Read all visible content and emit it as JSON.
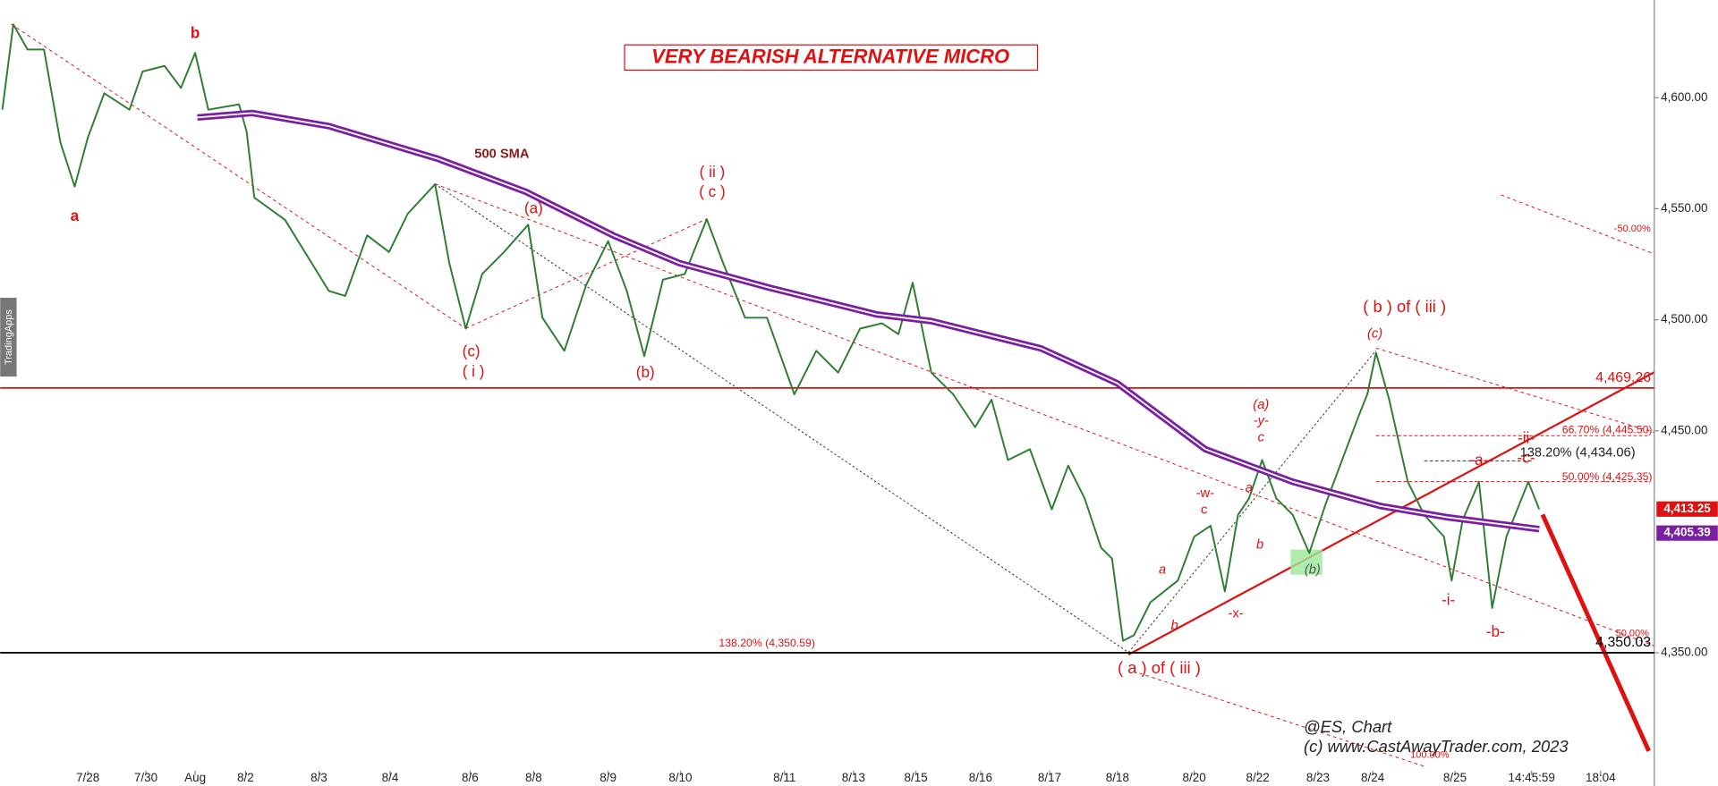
{
  "chart_data": {
    "type": "line",
    "title": "VERY BEARISH ALTERNATIVE MICRO",
    "side_label": "TradingApps",
    "xlim": [
      0,
      151
    ],
    "ylim": [
      4290,
      4644
    ],
    "xticks": [
      {
        "value": 8.0,
        "label": "7/28"
      },
      {
        "value": 13.3,
        "label": "7/30"
      },
      {
        "value": 17.8,
        "label": "Aug"
      },
      {
        "value": 22.4,
        "label": "8/2"
      },
      {
        "value": 29.1,
        "label": "8/3"
      },
      {
        "value": 35.6,
        "label": "8/4"
      },
      {
        "value": 42.9,
        "label": "8/6"
      },
      {
        "value": 48.7,
        "label": "8/8"
      },
      {
        "value": 55.5,
        "label": "8/9"
      },
      {
        "value": 62.1,
        "label": "8/10"
      },
      {
        "value": 71.6,
        "label": "8/11"
      },
      {
        "value": 77.9,
        "label": "8/13"
      },
      {
        "value": 83.6,
        "label": "8/15"
      },
      {
        "value": 89.5,
        "label": "8/16"
      },
      {
        "value": 95.8,
        "label": "8/17"
      },
      {
        "value": 102.0,
        "label": "8/18"
      },
      {
        "value": 109.0,
        "label": "8/20"
      },
      {
        "value": 114.8,
        "label": "8/22"
      },
      {
        "value": 120.3,
        "label": "8/23"
      },
      {
        "value": 125.3,
        "label": "8/24"
      },
      {
        "value": 132.8,
        "label": "8/25"
      },
      {
        "value": 139.8,
        "label": "14:45:59"
      },
      {
        "value": 146.1,
        "label": "18:04"
      }
    ],
    "yticks": [
      {
        "value": 4600,
        "label": "4,600.00"
      },
      {
        "value": 4550,
        "label": "4,550.00"
      },
      {
        "value": 4500,
        "label": "4,500.00"
      },
      {
        "value": 4450,
        "label": "4,450.00"
      },
      {
        "value": 4350,
        "label": "4,350.00"
      }
    ],
    "series": [
      {
        "name": "@ES",
        "color": "#2e7d32",
        "x": [
          0.2,
          1.2,
          2.5,
          4.0,
          5.5,
          6.8,
          8.0,
          9.5,
          11.8,
          13.0,
          15.0,
          16.5,
          17.8,
          19.0,
          21.8,
          22.5,
          23.2,
          26.0,
          30.0,
          31.5,
          33.5,
          35.5,
          37.2,
          39.7,
          41.0,
          42.5,
          44.0,
          46.0,
          48.2,
          49.5,
          51.5,
          53.5,
          55.5,
          57.2,
          58.8,
          60.5,
          62.5,
          64.5,
          66.0,
          68.0,
          70.0,
          72.5,
          74.5,
          76.5,
          78.5,
          80.5,
          82.0,
          83.3,
          85.0,
          87.0,
          89.0,
          90.5,
          92.0,
          94.0,
          96.0,
          97.5,
          99.0,
          100.5,
          101.5,
          102.5,
          103.5,
          105.0,
          107.5,
          109.0,
          110.5,
          111.8,
          113.0,
          114.0,
          115.2,
          116.5,
          118.0,
          119.5,
          121.0,
          122.5,
          124.0,
          124.8,
          125.6,
          126.8,
          128.5,
          130.0,
          131.8,
          132.5,
          133.5,
          135.0,
          136.2,
          137.5,
          139.5,
          140.5
        ],
        "values": [
          4594.6,
          4633,
          4621.7,
          4621.7,
          4579.8,
          4560,
          4582,
          4602,
          4594.6,
          4611.8,
          4614.3,
          4604.4,
          4620.2,
          4594.6,
          4597,
          4584.7,
          4555,
          4545,
          4513,
          4510.7,
          4538,
          4530.5,
          4547.7,
          4561,
          4525.5,
          4496,
          4520.6,
          4530.5,
          4542.8,
          4500.9,
          4486,
          4515.7,
          4535.4,
          4513,
          4483.6,
          4518,
          4520.6,
          4545.3,
          4525.5,
          4500.9,
          4500.9,
          4466.4,
          4486,
          4476.2,
          4496,
          4498.4,
          4493.5,
          4516.7,
          4476.2,
          4466.4,
          4451.6,
          4464,
          4436.8,
          4441.7,
          4414.6,
          4434.3,
          4419.5,
          4397.3,
          4392.4,
          4355.4,
          4357.9,
          4372.7,
          4382.5,
          4402.3,
          4407.2,
          4377.6,
          4412.1,
          4419.5,
          4436.8,
          4419.5,
          4412.1,
          4394.9,
          4417,
          4436.8,
          4456.5,
          4466.4,
          4485.1,
          4464,
          4427,
          4412.1,
          4402.3,
          4382.5,
          4409.7,
          4427,
          4370.2,
          4402.3,
          4427,
          4414.6
        ]
      },
      {
        "name": "500 SMA",
        "color": "#7b1fa2",
        "x": [
          18,
          23,
          30,
          40,
          48,
          56,
          62,
          70,
          80,
          85,
          95,
          102,
          110,
          118,
          126,
          132,
          140.5
        ],
        "values": [
          4591.1,
          4593.1,
          4587.2,
          4572.4,
          4557.6,
          4537.9,
          4525.5,
          4514.7,
          4502.4,
          4499.4,
          4487.1,
          4471.3,
          4441.7,
          4427,
          4416.1,
          4411.1,
          4405.7
        ]
      }
    ],
    "levels": [
      {
        "value": 4469.26,
        "label": "4,469.26",
        "color": "#e01010"
      },
      {
        "value": 4350.03,
        "label": "4,350.03",
        "color": "#000000"
      }
    ],
    "price_tags": [
      {
        "value": 4413.25,
        "label": "4,413.25",
        "color": "#e01010"
      },
      {
        "value": 4405.39,
        "label": "4,405.39",
        "color": "#7b1fa2"
      }
    ],
    "annotations": [
      "500 SMA",
      "a",
      "b",
      "(c)",
      "( i )",
      "(a)",
      "(b)",
      "( ii )",
      "( c )",
      "( b ) of ( iii )",
      "(c)",
      "( a ) of ( iii )",
      "(a)",
      "-y-",
      "c",
      "-w-",
      "c",
      "a",
      "b",
      "a",
      "b",
      "-x-",
      "(b)",
      "-a-",
      "-ii-",
      "-c-",
      "-i-",
      "-b-",
      "@ES, Chart",
      "(c) www.CastAwayTrader.com, 2023",
      "138.20% (4,350.59)",
      "66.70% (4,445.50)",
      "138.20% (4,434.06)",
      "50.00% (4,425.35)",
      "-50.00%",
      "50.00%",
      "100.00%"
    ]
  }
}
